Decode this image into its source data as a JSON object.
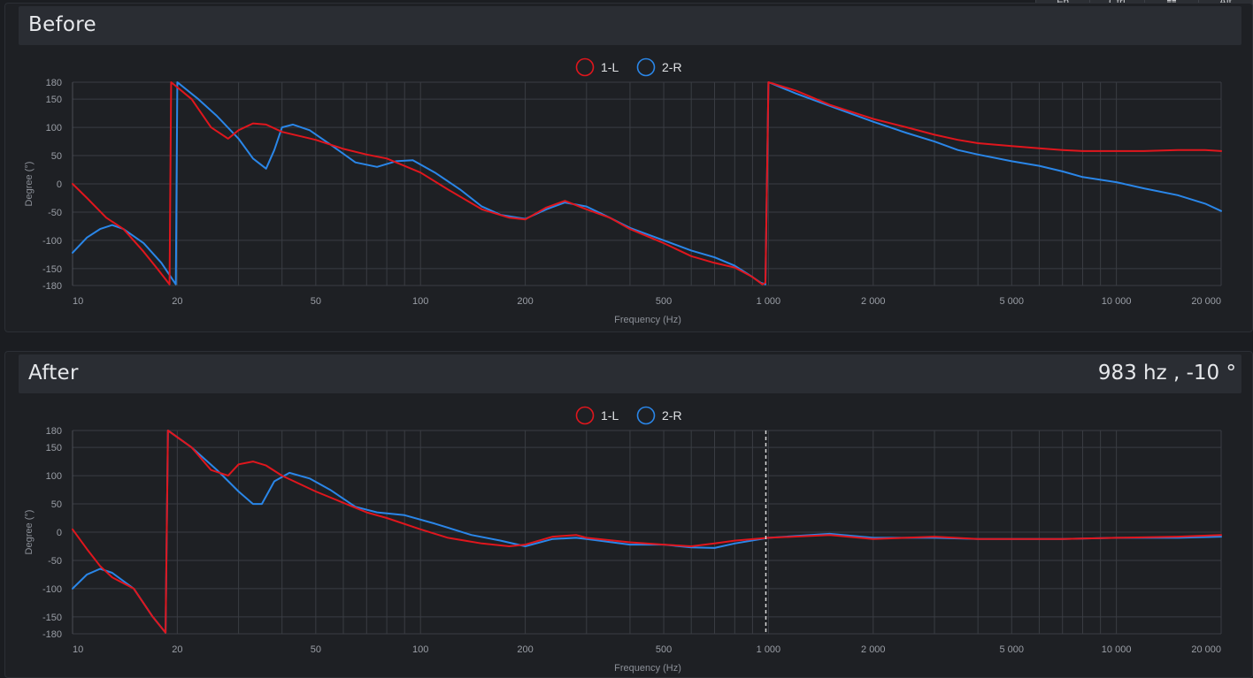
{
  "keys": [
    "Fn",
    "Ctrl",
    "",
    "Alt"
  ],
  "keys_icons": [
    "",
    "",
    "windows-icon",
    ""
  ],
  "colors": {
    "left": "#e0161d",
    "right": "#2a86e8",
    "grid": "#3a3d43",
    "cursor": "#d8d8d8"
  },
  "chart_data": [
    {
      "type": "line",
      "panel_title": "Before",
      "title": "",
      "xlabel": "Frequency (Hz)",
      "ylabel": "Degree (°)",
      "x_scale": "log",
      "xlim": [
        10,
        20000
      ],
      "ylim": [
        -180,
        180
      ],
      "x_tick_values": [
        10,
        20,
        50,
        100,
        200,
        500,
        1000,
        2000,
        5000,
        10000,
        20000
      ],
      "x_tick_labels": [
        "10",
        "20",
        "50",
        "100",
        "200",
        "500",
        "1 000",
        "2 000",
        "5 000",
        "10 000",
        "20 000"
      ],
      "y_tick_values": [
        180,
        150,
        100,
        50,
        0,
        -50,
        -100,
        -150,
        -180
      ],
      "y_tick_labels": [
        "180",
        "150",
        "100",
        "50",
        "0",
        "-50",
        "-100",
        "-150",
        "-180"
      ],
      "grid": true,
      "legend": "top-center",
      "series": [
        {
          "name": "1-L",
          "color": "#e0161d",
          "points": [
            [
              10,
              0
            ],
            [
              11,
              -25
            ],
            [
              12.5,
              -60
            ],
            [
              14,
              -80
            ],
            [
              16,
              -120
            ],
            [
              17.5,
              -150
            ],
            [
              19,
              -178
            ],
            [
              19.2,
              180
            ],
            [
              22,
              150
            ],
            [
              25,
              100
            ],
            [
              28,
              80
            ],
            [
              30,
              95
            ],
            [
              33,
              107
            ],
            [
              36,
              105
            ],
            [
              40,
              92
            ],
            [
              50,
              78
            ],
            [
              60,
              62
            ],
            [
              70,
              52
            ],
            [
              80,
              45
            ],
            [
              100,
              20
            ],
            [
              120,
              -10
            ],
            [
              150,
              -45
            ],
            [
              180,
              -60
            ],
            [
              200,
              -63
            ],
            [
              230,
              -42
            ],
            [
              260,
              -30
            ],
            [
              300,
              -45
            ],
            [
              350,
              -60
            ],
            [
              400,
              -80
            ],
            [
              500,
              -105
            ],
            [
              600,
              -128
            ],
            [
              700,
              -140
            ],
            [
              800,
              -148
            ],
            [
              900,
              -165
            ],
            [
              960,
              -178
            ],
            [
              980,
              -175
            ],
            [
              1000,
              180
            ],
            [
              1200,
              165
            ],
            [
              1500,
              140
            ],
            [
              2000,
              115
            ],
            [
              2500,
              100
            ],
            [
              3000,
              87
            ],
            [
              3500,
              78
            ],
            [
              4000,
              72
            ],
            [
              5000,
              67
            ],
            [
              6000,
              63
            ],
            [
              7000,
              60
            ],
            [
              8000,
              58
            ],
            [
              10000,
              58
            ],
            [
              12000,
              58
            ],
            [
              15000,
              60
            ],
            [
              18000,
              60
            ],
            [
              20000,
              58
            ]
          ]
        },
        {
          "name": "2-R",
          "color": "#2a86e8",
          "points": [
            [
              10,
              -122
            ],
            [
              11,
              -95
            ],
            [
              12,
              -80
            ],
            [
              13,
              -73
            ],
            [
              14,
              -80
            ],
            [
              16,
              -105
            ],
            [
              18,
              -140
            ],
            [
              19.8,
              -178
            ],
            [
              20,
              180
            ],
            [
              23,
              150
            ],
            [
              26,
              120
            ],
            [
              30,
              80
            ],
            [
              33,
              45
            ],
            [
              36,
              27
            ],
            [
              38,
              60
            ],
            [
              40,
              100
            ],
            [
              43,
              105
            ],
            [
              48,
              95
            ],
            [
              55,
              70
            ],
            [
              65,
              38
            ],
            [
              75,
              30
            ],
            [
              85,
              40
            ],
            [
              95,
              42
            ],
            [
              110,
              20
            ],
            [
              130,
              -10
            ],
            [
              150,
              -40
            ],
            [
              170,
              -55
            ],
            [
              200,
              -62
            ],
            [
              230,
              -45
            ],
            [
              260,
              -33
            ],
            [
              300,
              -40
            ],
            [
              350,
              -60
            ],
            [
              400,
              -78
            ],
            [
              500,
              -100
            ],
            [
              600,
              -118
            ],
            [
              700,
              -130
            ],
            [
              800,
              -145
            ],
            [
              900,
              -165
            ],
            [
              950,
              -175
            ],
            [
              980,
              -178
            ],
            [
              1000,
              180
            ],
            [
              1200,
              160
            ],
            [
              1500,
              138
            ],
            [
              2000,
              110
            ],
            [
              2500,
              90
            ],
            [
              3000,
              75
            ],
            [
              3500,
              60
            ],
            [
              4000,
              52
            ],
            [
              5000,
              40
            ],
            [
              6000,
              32
            ],
            [
              7000,
              22
            ],
            [
              8000,
              12
            ],
            [
              10000,
              3
            ],
            [
              12000,
              -8
            ],
            [
              15000,
              -20
            ],
            [
              18000,
              -35
            ],
            [
              20000,
              -48
            ]
          ]
        }
      ]
    },
    {
      "type": "line",
      "panel_title": "After",
      "title": "",
      "readout": "983 hz , -10 °",
      "cursor_x": 983,
      "xlabel": "Frequency (Hz)",
      "ylabel": "Degree (°)",
      "x_scale": "log",
      "xlim": [
        10,
        20000
      ],
      "ylim": [
        -180,
        180
      ],
      "x_tick_values": [
        10,
        20,
        50,
        100,
        200,
        500,
        1000,
        2000,
        5000,
        10000,
        20000
      ],
      "x_tick_labels": [
        "10",
        "20",
        "50",
        "100",
        "200",
        "500",
        "1 000",
        "2 000",
        "5 000",
        "10 000",
        "20 000"
      ],
      "y_tick_values": [
        180,
        150,
        100,
        50,
        0,
        -50,
        -100,
        -150,
        -180
      ],
      "y_tick_labels": [
        "180",
        "150",
        "100",
        "50",
        "0",
        "-50",
        "-100",
        "-150",
        "-180"
      ],
      "grid": true,
      "legend": "top-center",
      "series": [
        {
          "name": "1-L",
          "color": "#e0161d",
          "points": [
            [
              10,
              5
            ],
            [
              11,
              -30
            ],
            [
              12,
              -60
            ],
            [
              13,
              -80
            ],
            [
              15,
              -100
            ],
            [
              17,
              -150
            ],
            [
              18.5,
              -178
            ],
            [
              18.8,
              180
            ],
            [
              22,
              150
            ],
            [
              25,
              110
            ],
            [
              28,
              100
            ],
            [
              30,
              120
            ],
            [
              33,
              125
            ],
            [
              36,
              118
            ],
            [
              40,
              100
            ],
            [
              50,
              72
            ],
            [
              60,
              52
            ],
            [
              70,
              35
            ],
            [
              80,
              25
            ],
            [
              100,
              5
            ],
            [
              120,
              -10
            ],
            [
              150,
              -20
            ],
            [
              180,
              -25
            ],
            [
              200,
              -22
            ],
            [
              240,
              -8
            ],
            [
              280,
              -5
            ],
            [
              300,
              -10
            ],
            [
              400,
              -18
            ],
            [
              500,
              -22
            ],
            [
              600,
              -25
            ],
            [
              700,
              -20
            ],
            [
              800,
              -15
            ],
            [
              1000,
              -10
            ],
            [
              1500,
              -5
            ],
            [
              2000,
              -12
            ],
            [
              3000,
              -8
            ],
            [
              4000,
              -12
            ],
            [
              5000,
              -12
            ],
            [
              7000,
              -12
            ],
            [
              10000,
              -10
            ],
            [
              15000,
              -8
            ],
            [
              20000,
              -5
            ]
          ]
        },
        {
          "name": "2-R",
          "color": "#2a86e8",
          "points": [
            [
              10,
              -100
            ],
            [
              11,
              -75
            ],
            [
              12,
              -65
            ],
            [
              13,
              -72
            ],
            [
              15,
              -100
            ],
            [
              17,
              -150
            ],
            [
              18.5,
              -178
            ],
            [
              18.8,
              180
            ],
            [
              22,
              150
            ],
            [
              26,
              110
            ],
            [
              30,
              72
            ],
            [
              33,
              50
            ],
            [
              35,
              50
            ],
            [
              38,
              90
            ],
            [
              42,
              105
            ],
            [
              48,
              95
            ],
            [
              55,
              75
            ],
            [
              65,
              45
            ],
            [
              75,
              35
            ],
            [
              90,
              30
            ],
            [
              110,
              15
            ],
            [
              140,
              -5
            ],
            [
              170,
              -15
            ],
            [
              200,
              -25
            ],
            [
              240,
              -12
            ],
            [
              280,
              -10
            ],
            [
              300,
              -12
            ],
            [
              400,
              -22
            ],
            [
              500,
              -22
            ],
            [
              600,
              -27
            ],
            [
              700,
              -28
            ],
            [
              800,
              -20
            ],
            [
              1000,
              -10
            ],
            [
              1500,
              -3
            ],
            [
              2000,
              -10
            ],
            [
              3000,
              -10
            ],
            [
              4000,
              -12
            ],
            [
              5000,
              -12
            ],
            [
              7000,
              -12
            ],
            [
              10000,
              -10
            ],
            [
              15000,
              -10
            ],
            [
              20000,
              -8
            ]
          ]
        }
      ]
    }
  ]
}
